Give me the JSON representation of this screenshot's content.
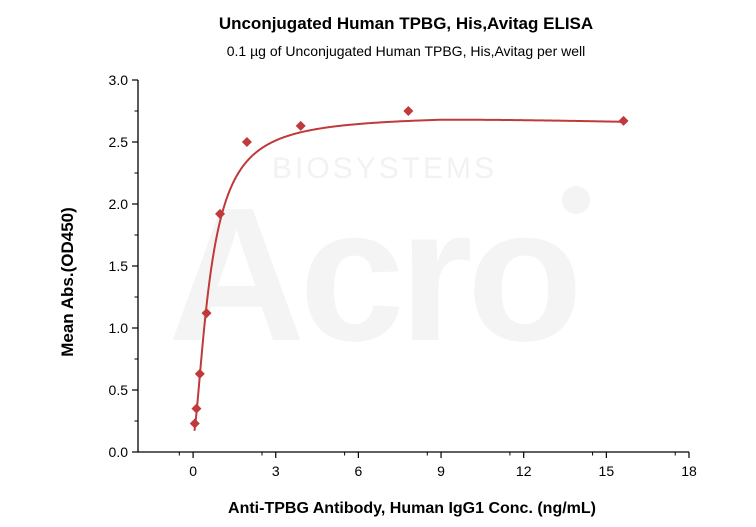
{
  "chart_data": {
    "type": "scatter",
    "title": "Unconjugated Human TPBG, His,Avitag ELISA",
    "subtitle": "0.1 µg of Unconjugated Human TPBG, His,Avitag per well",
    "xlabel": "Anti-TPBG Antibody, Human IgG1 Conc. (ng/mL)",
    "ylabel": "Mean Abs.(OD450)",
    "xlim": [
      -2,
      18
    ],
    "ylim": [
      0,
      3
    ],
    "x_ticks": [
      0,
      3,
      6,
      9,
      12,
      15,
      18
    ],
    "y_ticks": [
      0.0,
      0.5,
      1.0,
      1.5,
      2.0,
      2.5,
      3.0
    ],
    "x_tick_labels": [
      "0",
      "3",
      "6",
      "9",
      "12",
      "15",
      "18"
    ],
    "y_tick_labels": [
      "0.0",
      "0.5",
      "1.0",
      "1.5",
      "2.0",
      "2.5",
      "3.0"
    ],
    "series": [
      {
        "points": [
          {
            "x": 0.061,
            "y": 0.23
          },
          {
            "x": 0.122,
            "y": 0.35
          },
          {
            "x": 0.244,
            "y": 0.63
          },
          {
            "x": 0.488,
            "y": 1.12
          },
          {
            "x": 0.977,
            "y": 1.92
          },
          {
            "x": 1.953,
            "y": 2.5
          },
          {
            "x": 3.906,
            "y": 2.63
          },
          {
            "x": 7.813,
            "y": 2.75
          },
          {
            "x": 15.625,
            "y": 2.67
          }
        ],
        "color": "#c0393b",
        "marker": "diamond",
        "fit": "curve"
      }
    ],
    "grid": false,
    "legend": "none",
    "watermark": "BIOSYSTEMS"
  }
}
